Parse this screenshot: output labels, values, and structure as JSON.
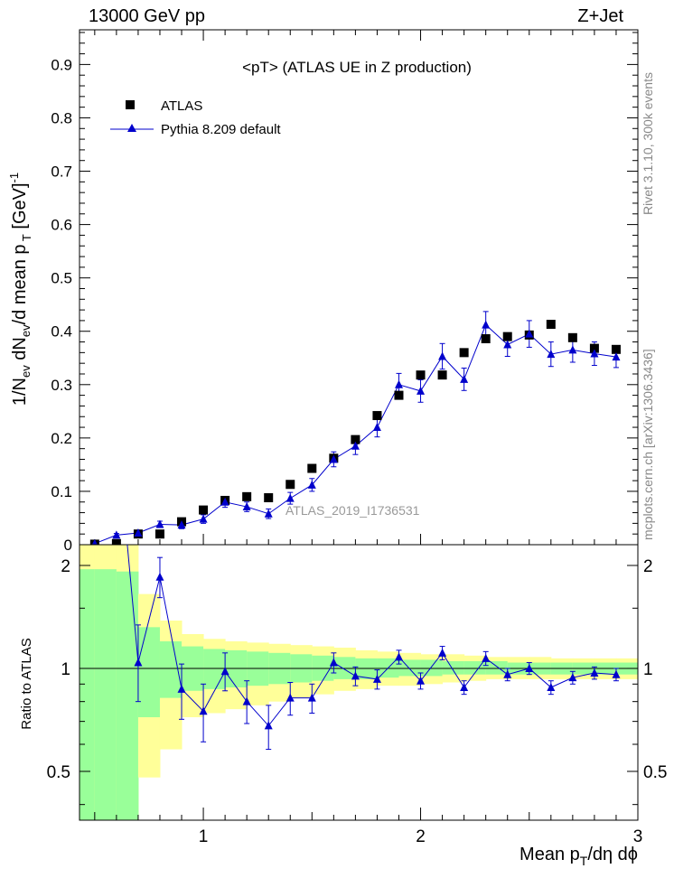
{
  "header": {
    "energy_label": "13000 GeV pp",
    "process_label": "Z+Jet"
  },
  "side_labels": {
    "rivet": "Rivet 3.1.10,  300k events",
    "mcplots": "mcplots.cern.ch [arXiv:1306.3436]"
  },
  "colors": {
    "data_marker": "#000000",
    "mc_line": "#0000cc",
    "band_outer": "#ffff99",
    "band_inner": "#99ff99",
    "watermark": "#999999",
    "side_text": "#888888"
  },
  "chart_data": [
    {
      "type": "scatter",
      "panel": "main",
      "title": "<pT>  (ATLAS UE in Z production)",
      "watermark": "ATLAS_2019_I1736531",
      "ylabel": "1/N_ev dN_ev/d mean p_T [GeV]^-1",
      "xlim": [
        0.43,
        3.0
      ],
      "ylim": [
        0,
        0.965
      ],
      "yticks": [
        0,
        0.1,
        0.2,
        0.3,
        0.4,
        0.5,
        0.6,
        0.7,
        0.8,
        0.9
      ],
      "ytick_labels": [
        "0",
        "0.1",
        "0.2",
        "0.3",
        "0.4",
        "0.5",
        "0.6",
        "0.7",
        "0.8",
        "0.9"
      ],
      "legend_position": "top-left",
      "series": [
        {
          "name": "ATLAS",
          "marker": "square",
          "x": [
            0.5,
            0.6,
            0.7,
            0.8,
            0.9,
            1.0,
            1.1,
            1.2,
            1.3,
            1.4,
            1.5,
            1.6,
            1.7,
            1.8,
            1.9,
            2.0,
            2.1,
            2.2,
            2.3,
            2.4,
            2.5,
            2.6,
            2.7,
            2.8,
            2.9
          ],
          "y": [
            0.001,
            0.002,
            0.02,
            0.02,
            0.043,
            0.065,
            0.083,
            0.09,
            0.088,
            0.113,
            0.143,
            0.162,
            0.197,
            0.242,
            0.28,
            0.318,
            0.318,
            0.36,
            0.386,
            0.39,
            0.393,
            0.413,
            0.388,
            0.368,
            0.366
          ]
        },
        {
          "name": "Pythia 8.209 default",
          "marker": "triangle",
          "x": [
            0.5,
            0.6,
            0.7,
            0.8,
            0.9,
            1.0,
            1.1,
            1.2,
            1.3,
            1.4,
            1.5,
            1.6,
            1.7,
            1.8,
            1.9,
            2.0,
            2.1,
            2.2,
            2.3,
            2.4,
            2.5,
            2.6,
            2.7,
            2.8,
            2.9
          ],
          "y": [
            0.002,
            0.018,
            0.022,
            0.038,
            0.037,
            0.048,
            0.08,
            0.071,
            0.058,
            0.087,
            0.112,
            0.16,
            0.185,
            0.22,
            0.3,
            0.288,
            0.353,
            0.31,
            0.412,
            0.375,
            0.395,
            0.357,
            0.365,
            0.358,
            0.352
          ],
          "yerr": [
            0.001,
            0.003,
            0.004,
            0.006,
            0.007,
            0.008,
            0.01,
            0.009,
            0.009,
            0.011,
            0.012,
            0.014,
            0.016,
            0.018,
            0.021,
            0.021,
            0.024,
            0.021,
            0.025,
            0.022,
            0.025,
            0.023,
            0.023,
            0.022,
            0.02
          ]
        }
      ]
    },
    {
      "type": "scatter",
      "panel": "ratio",
      "ylabel": "Ratio to ATLAS",
      "xlabel": "Mean p_T/dη dϕ",
      "xlim": [
        0.43,
        3.0
      ],
      "xticks": [
        1,
        2,
        3
      ],
      "xtick_labels": [
        "1",
        "2",
        "3"
      ],
      "ylim": [
        0.36,
        2.3
      ],
      "ylog": true,
      "yticks": [
        0.5,
        1,
        2
      ],
      "ytick_labels": [
        "0.5",
        "1",
        "2"
      ],
      "band_edges": [
        0.43,
        0.5,
        0.6,
        0.7,
        0.8,
        0.9,
        1.0,
        1.1,
        1.2,
        1.3,
        1.4,
        1.5,
        1.6,
        1.7,
        1.8,
        1.9,
        2.0,
        2.1,
        2.2,
        2.3,
        2.4,
        2.5,
        2.6,
        2.7,
        2.8,
        2.9,
        3.0
      ],
      "band_outer_low": [
        0.36,
        0.36,
        0.36,
        0.48,
        0.58,
        0.72,
        0.74,
        0.76,
        0.78,
        0.8,
        0.82,
        0.84,
        0.86,
        0.87,
        0.89,
        0.89,
        0.9,
        0.91,
        0.92,
        0.93,
        0.93,
        0.93,
        0.93,
        0.93,
        0.93,
        0.93
      ],
      "band_outer_high": [
        2.3,
        2.3,
        2.3,
        1.65,
        1.38,
        1.26,
        1.22,
        1.2,
        1.19,
        1.18,
        1.17,
        1.16,
        1.15,
        1.13,
        1.12,
        1.11,
        1.1,
        1.1,
        1.09,
        1.08,
        1.08,
        1.08,
        1.07,
        1.07,
        1.07,
        1.07
      ],
      "band_inner_low": [
        0.36,
        0.36,
        0.36,
        0.72,
        0.82,
        0.86,
        0.87,
        0.88,
        0.89,
        0.9,
        0.91,
        0.92,
        0.93,
        0.93,
        0.94,
        0.95,
        0.95,
        0.96,
        0.96,
        0.96,
        0.96,
        0.96,
        0.96,
        0.96,
        0.96,
        0.96
      ],
      "band_inner_high": [
        1.95,
        1.95,
        1.92,
        1.32,
        1.2,
        1.16,
        1.14,
        1.13,
        1.12,
        1.11,
        1.1,
        1.09,
        1.08,
        1.07,
        1.07,
        1.06,
        1.06,
        1.05,
        1.05,
        1.05,
        1.04,
        1.04,
        1.04,
        1.04,
        1.04,
        1.04
      ],
      "series": [
        {
          "name": "Pythia 8.209 default",
          "x": [
            0.7,
            0.8,
            0.9,
            1.0,
            1.1,
            1.2,
            1.3,
            1.4,
            1.5,
            1.6,
            1.7,
            1.8,
            1.9,
            2.0,
            2.1,
            2.2,
            2.3,
            2.4,
            2.5,
            2.6,
            2.7,
            2.8,
            2.9
          ],
          "y": [
            1.04,
            1.85,
            0.87,
            0.75,
            0.98,
            0.8,
            0.68,
            0.82,
            0.82,
            1.04,
            0.95,
            0.93,
            1.08,
            0.92,
            1.11,
            0.88,
            1.07,
            0.96,
            1.0,
            0.88,
            0.94,
            0.97,
            0.96
          ],
          "yerr_low": [
            0.24,
            0.24,
            0.16,
            0.14,
            0.12,
            0.11,
            0.1,
            0.09,
            0.08,
            0.07,
            0.06,
            0.06,
            0.05,
            0.05,
            0.05,
            0.04,
            0.05,
            0.04,
            0.04,
            0.04,
            0.04,
            0.04,
            0.04
          ],
          "yerr_high": [
            0.3,
            0.26,
            0.16,
            0.15,
            0.13,
            0.12,
            0.1,
            0.09,
            0.08,
            0.07,
            0.06,
            0.06,
            0.05,
            0.05,
            0.05,
            0.04,
            0.05,
            0.04,
            0.04,
            0.04,
            0.04,
            0.04,
            0.04
          ],
          "offscale_from": 0.65
        }
      ]
    }
  ]
}
